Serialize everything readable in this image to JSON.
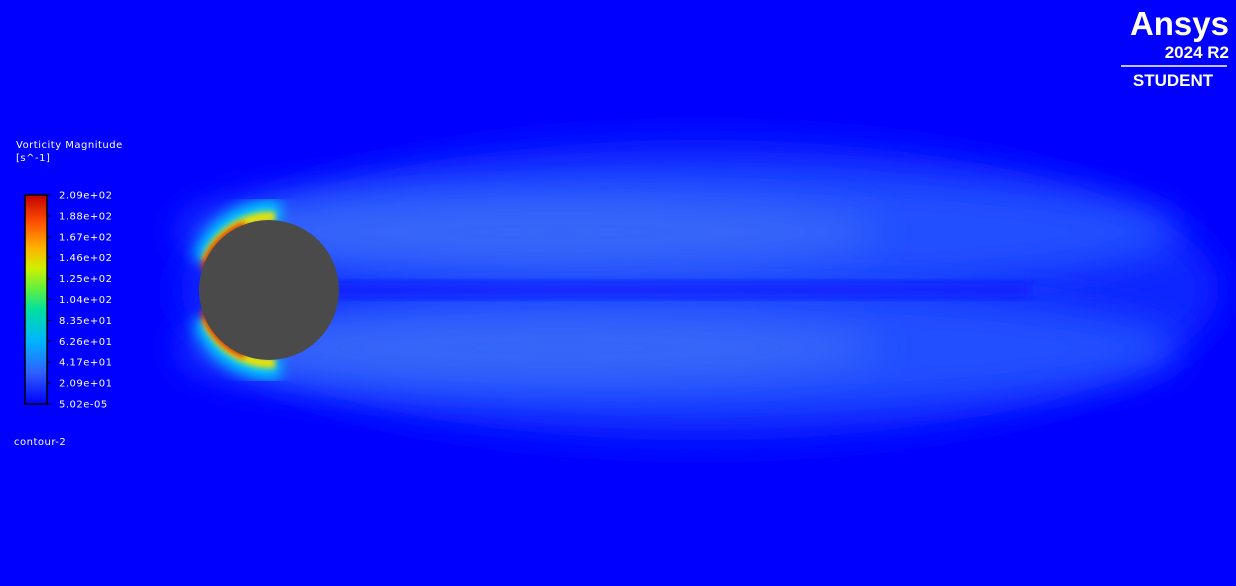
{
  "legend": {
    "title": "Vorticity Magnitude",
    "units": "[s^-1]",
    "labels": [
      "2.09e+02",
      "1.88e+02",
      "1.67e+02",
      "1.46e+02",
      "1.25e+02",
      "1.04e+02",
      "8.35e+01",
      "6.26e+01",
      "4.17e+01",
      "2.09e+01",
      "5.02e-05"
    ]
  },
  "contour_name": "contour-2",
  "logo": {
    "brand": "Ansys",
    "version": "2024 R2",
    "edition": "STUDENT"
  }
}
